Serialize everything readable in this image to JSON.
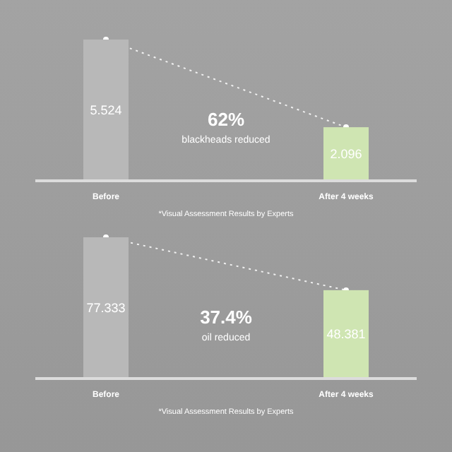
{
  "chart_data": [
    {
      "type": "bar",
      "categories": [
        "Before",
        "After 4 weeks"
      ],
      "values": [
        5.524,
        2.096
      ],
      "colors": [
        "#b8b8b8",
        "#cfe5b2"
      ],
      "data_labels": true,
      "annotations": [
        "62%",
        "blackheads reduced",
        "*Visual Assessment Results by Experts"
      ]
    },
    {
      "type": "bar",
      "categories": [
        "Before",
        "After 4 weeks"
      ],
      "values": [
        77.333,
        48.381
      ],
      "colors": [
        "#b8b8b8",
        "#cfe5b2"
      ],
      "data_labels": true,
      "annotations": [
        "37.4%",
        "oil reduced",
        "*Visual Assessment Results by Experts"
      ]
    }
  ]
}
